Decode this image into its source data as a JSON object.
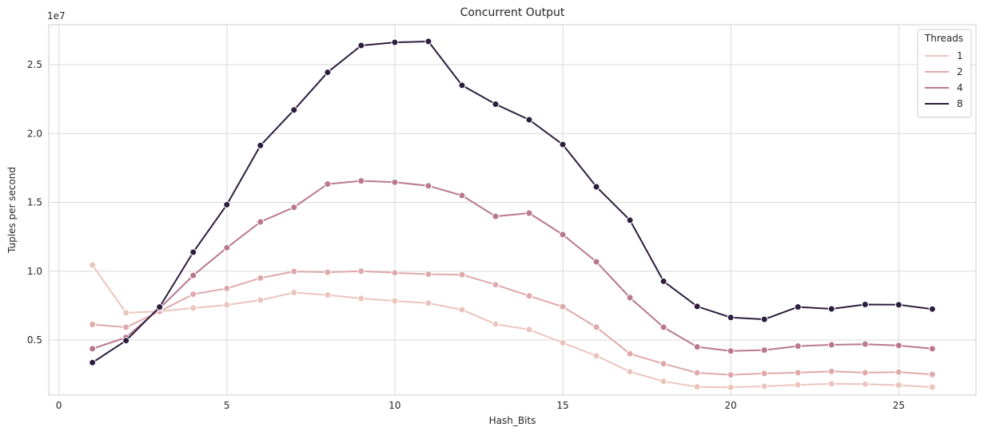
{
  "chart_data": {
    "type": "line",
    "title": "Concurrent Output",
    "xlabel": "Hash_Bits",
    "ylabel": "Tuples per second",
    "y_offset_label": "1e7",
    "xlim": [
      -0.3,
      27.3
    ],
    "ylim": [
      1000000,
      27900000
    ],
    "x_ticks": [
      0,
      5,
      10,
      15,
      20,
      25
    ],
    "y_ticks": [
      5000000,
      10000000,
      15000000,
      20000000,
      25000000
    ],
    "y_tick_labels": [
      "0.5",
      "1.0",
      "1.5",
      "2.0",
      "2.5"
    ],
    "grid": true,
    "legend": {
      "title": "Threads",
      "placement": "top-right"
    },
    "x": [
      1,
      2,
      3,
      4,
      5,
      6,
      7,
      8,
      9,
      10,
      11,
      12,
      13,
      14,
      15,
      16,
      17,
      18,
      19,
      20,
      21,
      22,
      23,
      24,
      25,
      26
    ],
    "series": [
      {
        "name": "1",
        "color": "#ebc5bd",
        "values": [
          10450000,
          6980000,
          7080000,
          7320000,
          7550000,
          7900000,
          8450000,
          8270000,
          8020000,
          7840000,
          7680000,
          7200000,
          6150000,
          5760000,
          4800000,
          3850000,
          2700000,
          2000000,
          1600000,
          1560000,
          1640000,
          1750000,
          1820000,
          1800000,
          1720000,
          1580000
        ]
      },
      {
        "name": "2",
        "color": "#dfa9ab",
        "values": [
          6130000,
          5930000,
          7080000,
          8330000,
          8750000,
          9500000,
          9980000,
          9920000,
          10000000,
          9880000,
          9780000,
          9750000,
          9020000,
          8200000,
          7420000,
          5930000,
          4000000,
          3280000,
          2620000,
          2470000,
          2570000,
          2630000,
          2720000,
          2630000,
          2670000,
          2500000
        ]
      },
      {
        "name": "4",
        "color": "#b97890",
        "values": [
          4370000,
          5180000,
          7300000,
          9690000,
          11700000,
          13580000,
          14640000,
          16330000,
          16560000,
          16460000,
          16200000,
          15500000,
          13980000,
          14220000,
          12660000,
          10680000,
          8080000,
          5930000,
          4500000,
          4200000,
          4270000,
          4560000,
          4650000,
          4700000,
          4600000,
          4370000
        ]
      },
      {
        "name": "8",
        "color": "#2d1e3e",
        "values": [
          3360000,
          4960000,
          7400000,
          11380000,
          14830000,
          19130000,
          21710000,
          24440000,
          26390000,
          26620000,
          26690000,
          23500000,
          22130000,
          21000000,
          19200000,
          16130000,
          13700000,
          9270000,
          7440000,
          6640000,
          6500000,
          7400000,
          7260000,
          7580000,
          7560000,
          7250000
        ]
      }
    ]
  }
}
